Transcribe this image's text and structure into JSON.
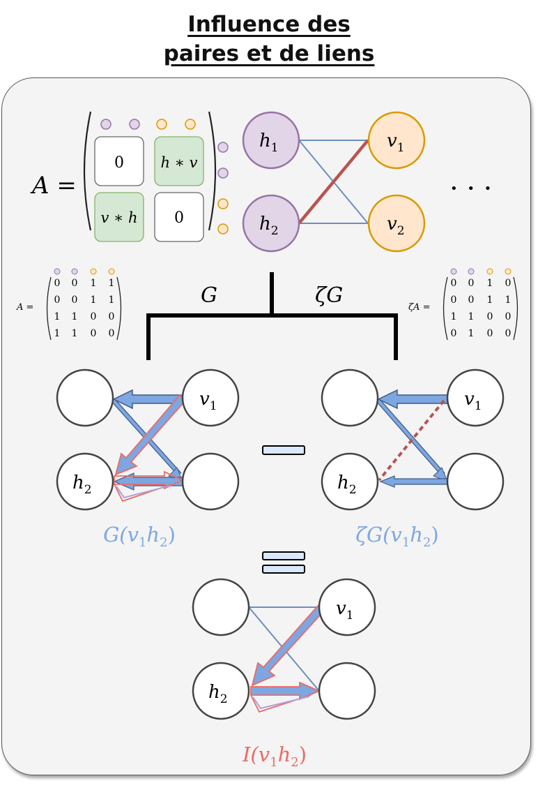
{
  "title": {
    "line1": "Influence des",
    "line2": "paires et de liens"
  },
  "block_matrix": {
    "lhs": "A =",
    "cells": [
      "0",
      "h ∗ v",
      "v ∗ h",
      "0"
    ],
    "cell_colors": [
      "#ffffff",
      "#d5e8d4",
      "#d5e8d4",
      "#ffffff"
    ]
  },
  "bipartite_top": {
    "left_nodes": [
      "h",
      "h"
    ],
    "left_subs": [
      "1",
      "2"
    ],
    "right_nodes": [
      "v",
      "v"
    ],
    "right_subs": [
      "1",
      "2"
    ],
    "highlighted_edge_color": "#b85450",
    "edge_color": "#6c8ebf"
  },
  "ellipsis": "• • •",
  "matrix_left": {
    "lhs": "A =",
    "rows": [
      [
        "0",
        "0",
        "1",
        "1"
      ],
      [
        "0",
        "0",
        "1",
        "1"
      ],
      [
        "1",
        "1",
        "0",
        "0"
      ],
      [
        "1",
        "1",
        "0",
        "0"
      ]
    ]
  },
  "matrix_right": {
    "lhs": "ζA =",
    "rows": [
      [
        "0",
        "0",
        "1",
        "0"
      ],
      [
        "0",
        "0",
        "1",
        "1"
      ],
      [
        "1",
        "1",
        "0",
        "0"
      ],
      [
        "0",
        "1",
        "0",
        "0"
      ]
    ]
  },
  "branch_labels": {
    "left": "G",
    "right": "ζG"
  },
  "left_graph": {
    "node_v": "v",
    "node_v_sub": "1",
    "node_h": "h",
    "node_h_sub": "2",
    "caption_main": "G(v",
    "caption_sub1": "1",
    "caption_mid": "h",
    "caption_sub2": "2",
    "caption_end": ")"
  },
  "right_graph": {
    "node_v": "v",
    "node_v_sub": "1",
    "node_h": "h",
    "node_h_sub": "2",
    "caption_main": "ζG(v",
    "caption_sub1": "1",
    "caption_mid": "h",
    "caption_sub2": "2",
    "caption_end": ")"
  },
  "bottom_graph": {
    "node_v": "v",
    "node_v_sub": "1",
    "node_h": "h",
    "node_h_sub": "2",
    "caption_main": "I(v",
    "caption_sub1": "1",
    "caption_mid": "h",
    "caption_sub2": "2",
    "caption_end": ")"
  },
  "colors": {
    "purple_fill": "#e1d5e7",
    "purple_stroke": "#9673a6",
    "orange_fill": "#ffe6cc",
    "orange_stroke": "#d79b00",
    "blue": "#7ea6e0",
    "red": "#ea6b66",
    "caption_blue": "#7ea6e0",
    "caption_red": "#ea6b66"
  }
}
